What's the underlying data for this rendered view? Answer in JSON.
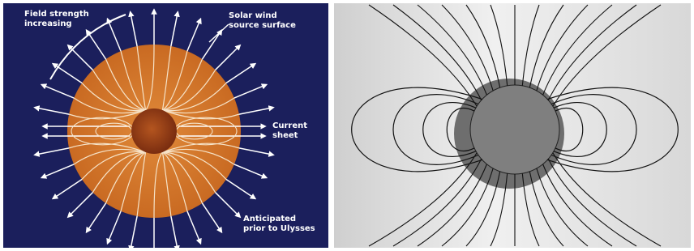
{
  "left_panel": {
    "field_strength": [
      "Field strength",
      "increasing"
    ],
    "source_surface": [
      "Solar wind",
      "source surface"
    ],
    "current_sheet": [
      "Current",
      "sheet"
    ],
    "anticipated": [
      "Anticipated",
      "prior to Ulysses"
    ]
  }
}
